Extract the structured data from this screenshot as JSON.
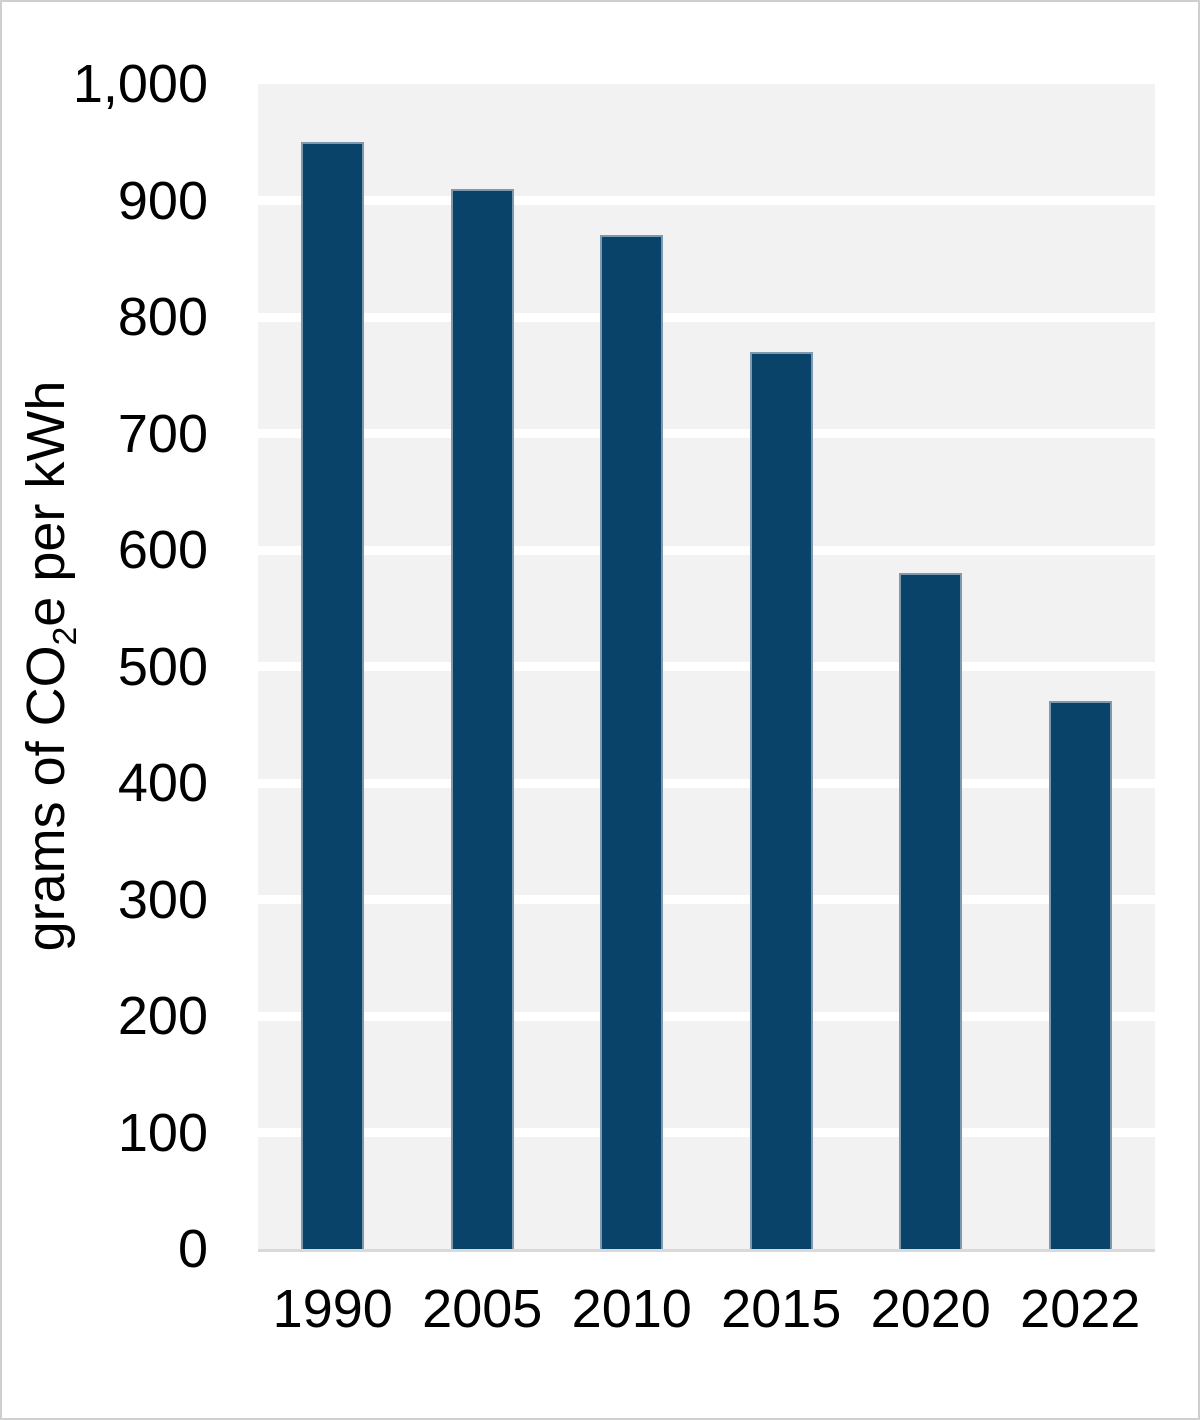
{
  "chart_data": {
    "type": "bar",
    "categories": [
      "1990",
      "2005",
      "2010",
      "2015",
      "2020",
      "2022"
    ],
    "values": [
      950,
      910,
      870,
      770,
      580,
      470
    ],
    "title": "",
    "xlabel": "",
    "ylabel_text": "grams of CO2e per kWh",
    "ylabel_parts": {
      "pre": "grams of CO",
      "sub": "2",
      "post": "e per kWh"
    },
    "ylim": [
      0,
      1000
    ],
    "ytick_values": [
      0,
      100,
      200,
      300,
      400,
      500,
      600,
      700,
      800,
      900,
      1000
    ],
    "ytick_labels": [
      "0",
      "100",
      "200",
      "300",
      "400",
      "500",
      "600",
      "700",
      "800",
      "900",
      "1,000"
    ],
    "grid": true,
    "legend": false,
    "colors": {
      "bar_fill": "#0a436a",
      "bar_edge": "#7e99af",
      "plot_background": "#f2f2f2",
      "gridline": "#ffffff",
      "axis_line": "#d9d9d9",
      "text": "#000000",
      "page_background": "#ffffff",
      "page_border": "#cfcfcf"
    }
  }
}
